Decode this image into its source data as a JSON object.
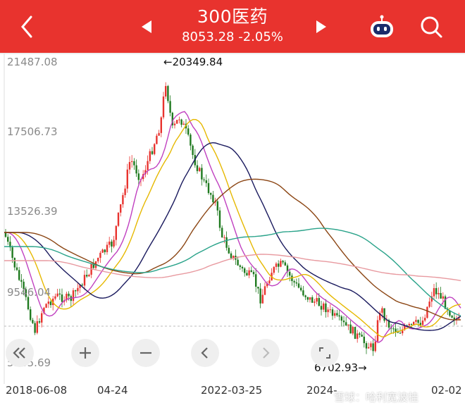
{
  "header": {
    "title": "300医药",
    "price_line": "8053.28  -2.05%",
    "back_icon": "chevron-left-icon",
    "prev_icon": "triangle-left-icon",
    "next_icon": "triangle-right-icon",
    "robot_icon": "robot-icon",
    "search_icon": "search-icon"
  },
  "colors": {
    "header_bg": "#e8332e",
    "up": "#e8332e",
    "down": "#1f7a1f",
    "ma5": "#333399",
    "ma10": "#c040c0",
    "ma20": "#e6b800",
    "ma60": "#1a1a5e",
    "ma120": "#8b4513",
    "ma250": "#2aa38a",
    "ma500": "#e89aa0"
  },
  "chart": {
    "y_labels": [
      "21487.08",
      "17506.73",
      "13526.39",
      "9546.04",
      "5565.69"
    ],
    "high_annotation": "←20349.84",
    "low_annotation": "6702.93→",
    "x_labels": [
      "2018-06-08",
      "04-24",
      "2022-03-25",
      "2024-",
      "02-02"
    ]
  },
  "controls": {
    "rewind_icon": "double-chevron-left-icon",
    "zoom_in_icon": "plus-icon",
    "zoom_out_icon": "minus-icon",
    "prev_icon": "chevron-left-icon",
    "next_icon": "chevron-right-icon",
    "fullscreen_icon": "fullscreen-icon"
  },
  "watermark": "雪球：哈利宽波桂"
}
